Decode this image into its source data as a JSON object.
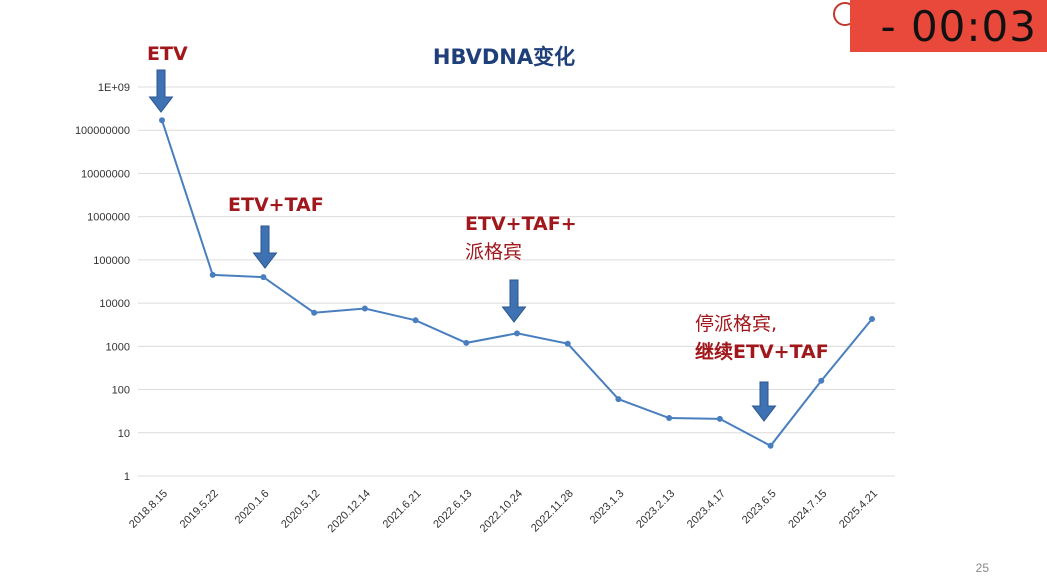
{
  "timer": {
    "text": "- 00:03"
  },
  "page_number": "25",
  "chart_data": {
    "type": "line",
    "title": "HBVDNA变化",
    "xlabel": "",
    "ylabel": "",
    "yscale": "log",
    "ylim": [
      1,
      1000000000
    ],
    "yticks": [
      1,
      10,
      100,
      1000,
      10000,
      100000,
      1000000,
      10000000,
      100000000,
      1000000000
    ],
    "ytick_labels": [
      "1",
      "10",
      "100",
      "1000",
      "10000",
      "100000",
      "1000000",
      "10000000",
      "100000000",
      "1E+09"
    ],
    "grid": true,
    "legend": "none",
    "categories": [
      "2018.8.15",
      "2019.5.22",
      "2020.1.6",
      "2020.5.12",
      "2020.12.14",
      "2021.6.21",
      "2022.6.13",
      "2022.10.24",
      "2022.11.28",
      "2023.1.3",
      "2023.2.13",
      "2023.4.17",
      "2023.6.5",
      "2024.7.15",
      "2025.4.21"
    ],
    "series": [
      {
        "values": [
          170000000,
          45000,
          40000,
          6000,
          7500,
          4000,
          1200,
          2000,
          1150,
          60,
          22,
          21,
          5,
          160,
          4300
        ]
      }
    ],
    "annotations": [
      {
        "lines": [
          "ETV"
        ],
        "bold": [
          true
        ],
        "category": "2018.8.15"
      },
      {
        "lines": [
          "ETV+TAF"
        ],
        "bold": [
          true
        ],
        "category": "2020.1.6"
      },
      {
        "lines": [
          "ETV+TAF+",
          "派格宾"
        ],
        "bold": [
          true,
          false
        ],
        "category": "2022.10.24"
      },
      {
        "lines": [
          "停派格宾,",
          "继续ETV+TAF"
        ],
        "bold": [
          false,
          true
        ],
        "category": "2023.6.5"
      }
    ],
    "colors": {
      "line": "#4a7fbf",
      "annotation": "#a0171c",
      "arrow": "#3f72b3",
      "title": "#1f3f7a"
    }
  }
}
